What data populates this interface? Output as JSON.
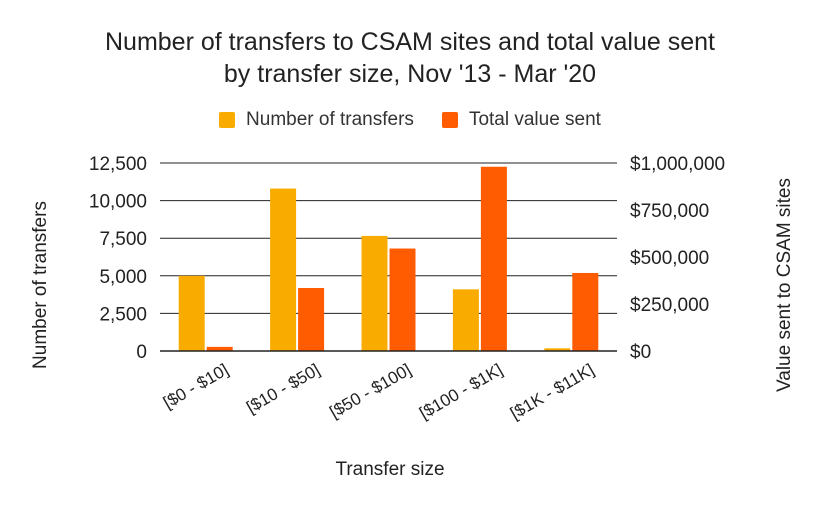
{
  "chart_data": {
    "type": "bar",
    "title_line1": "Number of transfers to CSAM sites and total value sent",
    "title_line2": "by transfer size, Nov '13 - Mar '20",
    "xlabel": "Transfer size",
    "ylabel_left": "Number of transfers",
    "ylabel_right": "Value sent to CSAM sites",
    "categories": [
      "[$0 - $10]",
      "[$10 - $50]",
      "[$50 - $100]",
      "[$100 - $1K]",
      "[$1K - $11K]"
    ],
    "series": [
      {
        "name": "Number of transfers",
        "axis": "left",
        "color": "#F9AB00",
        "values": [
          5000,
          10800,
          7650,
          4100,
          180
        ]
      },
      {
        "name": "Total value sent",
        "axis": "right",
        "color": "#FF5B00",
        "values": [
          22000,
          335000,
          545000,
          980000,
          415000
        ]
      }
    ],
    "left_axis": {
      "ylim": [
        0,
        12500
      ],
      "ticks": [
        0,
        2500,
        5000,
        7500,
        10000,
        12500
      ],
      "tick_labels": [
        "0",
        "2,500",
        "5,000",
        "7,500",
        "10,000",
        "12,500"
      ]
    },
    "right_axis": {
      "ylim": [
        0,
        1000000
      ],
      "ticks": [
        0,
        250000,
        500000,
        750000,
        1000000
      ],
      "tick_labels": [
        "$0",
        "$250,000",
        "$500,000",
        "$750,000",
        "$1,000,000"
      ]
    },
    "grid": true,
    "legend_position": "top-center"
  }
}
